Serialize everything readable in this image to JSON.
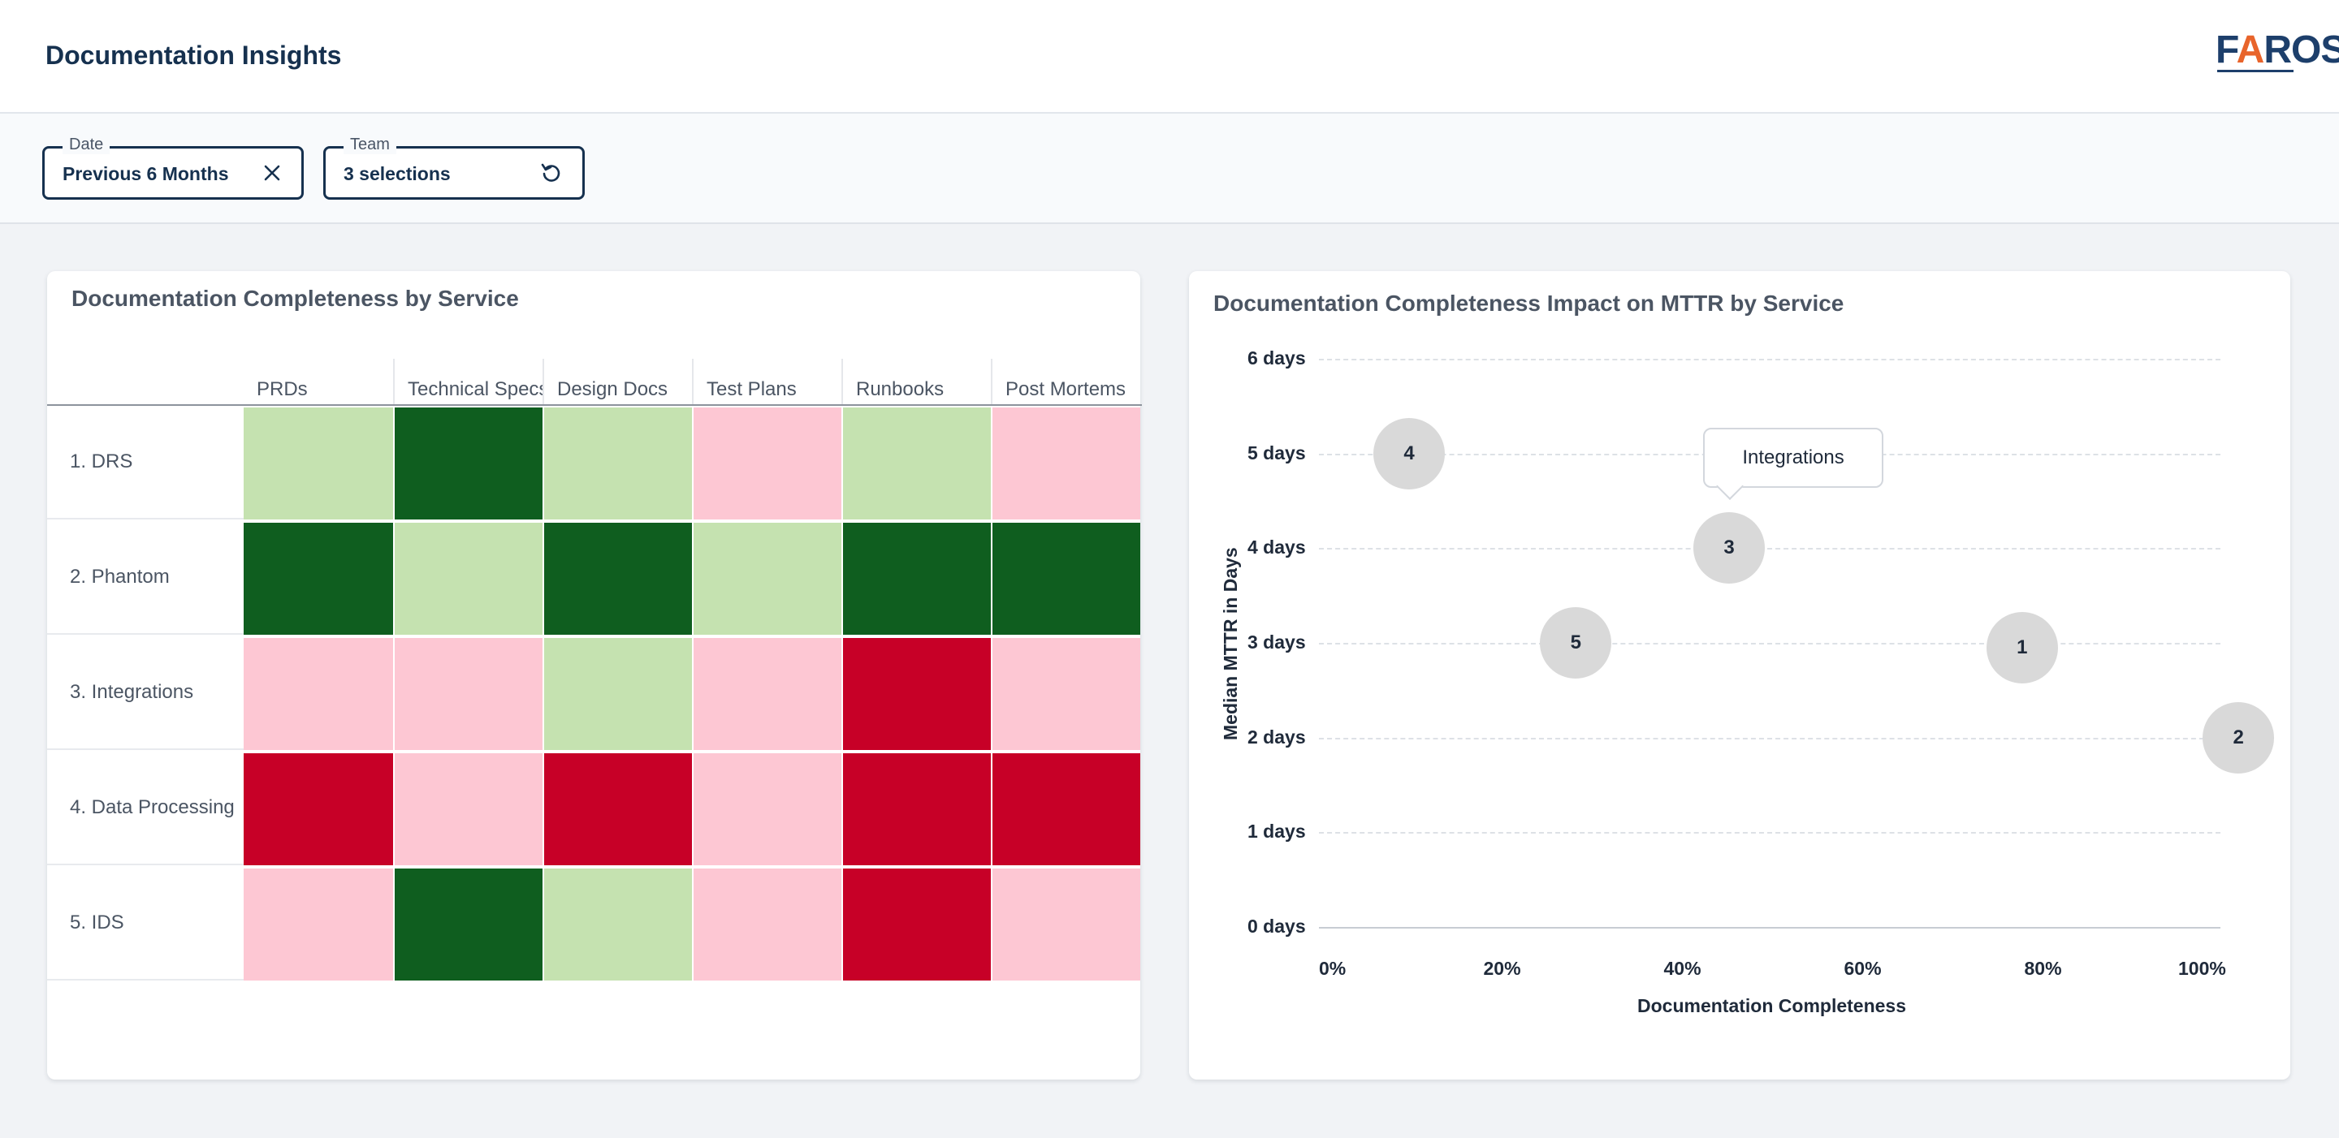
{
  "header": {
    "title": "Documentation Insights",
    "logo": {
      "text_prefix": "F",
      "text_a": "A",
      "text_suffix": "ROS"
    }
  },
  "filters": {
    "date": {
      "label": "Date",
      "value": "Previous 6 Months",
      "icon": "close-icon"
    },
    "team": {
      "label": "Team",
      "value": "3 selections",
      "icon": "reset-icon"
    }
  },
  "heatmap": {
    "title": "Documentation Completeness by Service",
    "columns": [
      "PRDs",
      "Technical Specs",
      "Design Docs",
      "Test Plans",
      "Runbooks",
      "Post Mortems"
    ],
    "rows": [
      {
        "label": "1. DRS",
        "levels": [
          "light-green",
          "dark-green",
          "light-green",
          "light-pink",
          "light-green",
          "light-pink"
        ]
      },
      {
        "label": "2. Phantom",
        "levels": [
          "dark-green",
          "light-green",
          "dark-green",
          "light-green",
          "dark-green",
          "dark-green"
        ]
      },
      {
        "label": "3. Integrations",
        "levels": [
          "light-pink",
          "light-pink",
          "light-green",
          "light-pink",
          "red",
          "light-pink"
        ]
      },
      {
        "label": "4. Data Processing",
        "levels": [
          "red",
          "light-pink",
          "red",
          "light-pink",
          "red",
          "red"
        ]
      },
      {
        "label": "5. IDS",
        "levels": [
          "light-pink",
          "dark-green",
          "light-green",
          "light-pink",
          "red",
          "light-pink"
        ]
      }
    ],
    "colors": {
      "dark-green": "#0f5e1f",
      "light-green": "#c5e2b0",
      "light-pink": "#fdc7d3",
      "red": "#c70027"
    }
  },
  "bubble_chart": {
    "title": "Documentation Completeness Impact on MTTR by Service",
    "tooltip": "Integrations",
    "bubble_color": "#d9d9d9"
  },
  "chart_data": {
    "type": "scatter",
    "title": "Documentation Completeness Impact on MTTR by Service",
    "xlabel": "Documentation Completeness",
    "ylabel": "Median MTTR in Days",
    "xlim": [
      0,
      100
    ],
    "ylim": [
      0,
      6
    ],
    "x_ticks": [
      "0%",
      "20%",
      "40%",
      "60%",
      "80%",
      "100%"
    ],
    "y_ticks": [
      "0 days",
      "1 days",
      "2 days",
      "3 days",
      "4 days",
      "5 days",
      "6 days"
    ],
    "grid": true,
    "points": [
      {
        "label": "1",
        "x": 78,
        "y": 2.95
      },
      {
        "label": "2",
        "x": 102,
        "y": 2.0
      },
      {
        "label": "3",
        "x": 45.5,
        "y": 4.0
      },
      {
        "label": "4",
        "x": 10,
        "y": 5.0
      },
      {
        "label": "5",
        "x": 28.5,
        "y": 3.0
      }
    ]
  }
}
